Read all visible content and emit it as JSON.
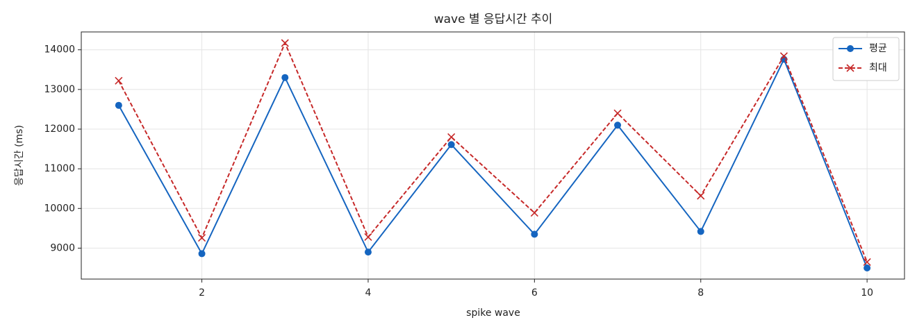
{
  "chart_data": {
    "type": "line",
    "title": "wave 별 응답시간 추이",
    "xlabel": "spike wave",
    "ylabel": "응답시간 (ms)",
    "x": [
      1,
      2,
      3,
      4,
      5,
      6,
      7,
      8,
      9,
      10
    ],
    "series": [
      {
        "name": "평균",
        "color": "#1565c0",
        "marker": "o",
        "dash": false,
        "values": [
          12600,
          8860,
          13300,
          8900,
          11610,
          9350,
          12100,
          9420,
          13760,
          8500
        ]
      },
      {
        "name": "최대",
        "color": "#c62828",
        "marker": "x",
        "dash": true,
        "values": [
          13220,
          9260,
          14170,
          9280,
          11800,
          9890,
          12400,
          10320,
          13840,
          8650
        ]
      }
    ],
    "xlim": [
      0.55,
      10.45
    ],
    "xticks": [
      2,
      4,
      6,
      8,
      10
    ],
    "ylim": [
      8220,
      14450
    ],
    "yticks": [
      9000,
      10000,
      11000,
      12000,
      13000,
      14000
    ],
    "grid": true,
    "legend": "upper right"
  }
}
